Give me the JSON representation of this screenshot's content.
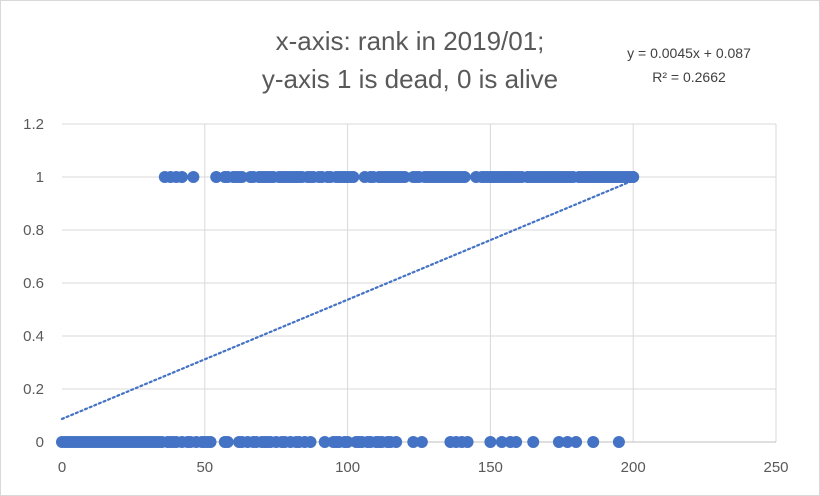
{
  "chart_data": {
    "type": "scatter",
    "title_lines": [
      "x-axis: rank in 2019/01;",
      "y-axis 1 is dead, 0 is alive"
    ],
    "trendline": {
      "slope": 0.0045,
      "intercept": 0.087,
      "equation_label": "y = 0.0045x + 0.087",
      "r2_label": "R² = 0.2662",
      "x_range": [
        0,
        200
      ],
      "style": "dotted",
      "color": "#4472c4"
    },
    "marker_color": "#4472c4",
    "xlim": [
      0,
      250
    ],
    "ylim": [
      0,
      1.2
    ],
    "x_ticks": [
      "0",
      "50",
      "100",
      "150",
      "200",
      "250"
    ],
    "y_ticks": [
      "0",
      "0.2",
      "0.4",
      "0.6",
      "0.8",
      "1",
      "1.2"
    ],
    "grid": true,
    "series": [
      {
        "label_value": 0,
        "x": [
          0,
          1,
          2,
          3,
          4,
          5,
          6,
          7,
          8,
          9,
          10,
          11,
          12,
          13,
          14,
          15,
          16,
          17,
          18,
          19,
          20,
          21,
          22,
          23,
          24,
          25,
          26,
          27,
          28,
          29,
          30,
          31,
          32,
          33,
          34,
          35,
          37,
          38,
          39,
          40,
          42,
          44,
          45,
          47,
          49,
          50,
          51,
          52,
          57,
          58,
          62,
          63,
          65,
          67,
          68,
          70,
          71,
          72,
          73,
          75,
          77,
          78,
          80,
          82,
          83,
          85,
          87,
          92,
          95,
          96,
          97,
          99,
          100,
          103,
          104,
          105,
          107,
          108,
          110,
          111,
          112,
          114,
          115,
          117,
          123,
          126,
          136,
          138,
          140,
          142,
          150,
          154,
          157,
          159,
          165,
          174,
          177,
          180,
          186,
          195
        ],
        "y": [
          0,
          0,
          0,
          0,
          0,
          0,
          0,
          0,
          0,
          0,
          0,
          0,
          0,
          0,
          0,
          0,
          0,
          0,
          0,
          0,
          0,
          0,
          0,
          0,
          0,
          0,
          0,
          0,
          0,
          0,
          0,
          0,
          0,
          0,
          0,
          0,
          0,
          0,
          0,
          0,
          0,
          0,
          0,
          0,
          0,
          0,
          0,
          0,
          0,
          0,
          0,
          0,
          0,
          0,
          0,
          0,
          0,
          0,
          0,
          0,
          0,
          0,
          0,
          0,
          0,
          0,
          0,
          0,
          0,
          0,
          0,
          0,
          0,
          0,
          0,
          0,
          0,
          0,
          0,
          0,
          0,
          0,
          0,
          0,
          0,
          0,
          0,
          0,
          0,
          0,
          0,
          0,
          0,
          0,
          0,
          0,
          0,
          0,
          0,
          0
        ]
      },
      {
        "label_value": 1,
        "x": [
          36,
          38,
          40,
          42,
          46,
          54,
          57,
          58,
          60,
          61,
          62,
          63,
          66,
          67,
          69,
          70,
          71,
          72,
          73,
          74,
          76,
          77,
          78,
          79,
          80,
          81,
          82,
          83,
          84,
          86,
          87,
          88,
          90,
          91,
          93,
          94,
          96,
          97,
          98,
          99,
          100,
          101,
          102,
          106,
          108,
          109,
          111,
          112,
          113,
          114,
          115,
          116,
          117,
          118,
          119,
          120,
          123,
          124,
          125,
          127,
          128,
          129,
          130,
          131,
          132,
          133,
          134,
          135,
          136,
          137,
          138,
          139,
          140,
          141,
          145,
          147,
          148,
          149,
          150,
          151,
          152,
          153,
          154,
          155,
          156,
          157,
          158,
          159,
          160,
          161,
          163,
          164,
          165,
          166,
          167,
          168,
          169,
          170,
          171,
          172,
          173,
          174,
          175,
          176,
          177,
          178,
          179,
          181,
          182,
          183,
          184,
          185,
          186,
          187,
          188,
          189,
          190,
          191,
          192,
          193,
          194,
          195,
          196,
          197,
          198,
          199,
          200
        ],
        "y": [
          1,
          1,
          1,
          1,
          1,
          1,
          1,
          1,
          1,
          1,
          1,
          1,
          1,
          1,
          1,
          1,
          1,
          1,
          1,
          1,
          1,
          1,
          1,
          1,
          1,
          1,
          1,
          1,
          1,
          1,
          1,
          1,
          1,
          1,
          1,
          1,
          1,
          1,
          1,
          1,
          1,
          1,
          1,
          1,
          1,
          1,
          1,
          1,
          1,
          1,
          1,
          1,
          1,
          1,
          1,
          1,
          1,
          1,
          1,
          1,
          1,
          1,
          1,
          1,
          1,
          1,
          1,
          1,
          1,
          1,
          1,
          1,
          1,
          1,
          1,
          1,
          1,
          1,
          1,
          1,
          1,
          1,
          1,
          1,
          1,
          1,
          1,
          1,
          1,
          1,
          1,
          1,
          1,
          1,
          1,
          1,
          1,
          1,
          1,
          1,
          1,
          1,
          1,
          1,
          1,
          1,
          1,
          1,
          1,
          1,
          1,
          1,
          1,
          1,
          1,
          1,
          1,
          1,
          1,
          1,
          1,
          1,
          1,
          1,
          1,
          1,
          1
        ]
      }
    ]
  }
}
